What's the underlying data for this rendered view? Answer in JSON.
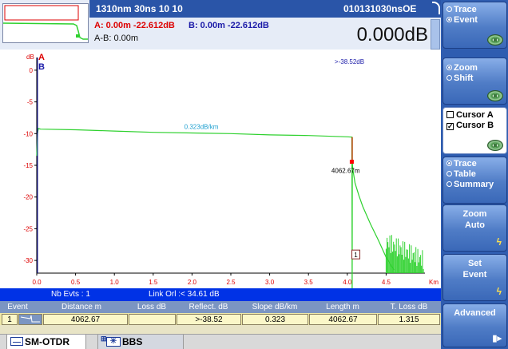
{
  "header": {
    "wavelength_info": "1310nm 30ns   10  10",
    "file_id": "010131030nsOE",
    "cursor_a": "A: 0.00m -22.612dB",
    "cursor_b": "B: 0.00m -22.612dB",
    "ab_distance": "A-B: 0.00m",
    "loss": "0.000dB"
  },
  "plot": {
    "y_unit": "dB",
    "x_unit": "Km",
    "marker_a": "A",
    "marker_b": "B",
    "slope_label": "0.323dB/km",
    "reflect_label": ">-38.52dB",
    "event_distance_label": "4062.67m",
    "event_marker": "1"
  },
  "chart_data": {
    "type": "line",
    "xlabel": "Km",
    "ylabel": "dB",
    "xlim": [
      0,
      5.0
    ],
    "ylim": [
      -32,
      2
    ],
    "x_ticks": [
      "0.0",
      "0.5",
      "1.0",
      "1.5",
      "2.0",
      "2.5",
      "3.0",
      "3.5",
      "4.0",
      "4.5"
    ],
    "y_ticks": [
      "0",
      "-5",
      "-10",
      "-15",
      "-20",
      "-25",
      "-30"
    ],
    "grid": false,
    "series": [
      {
        "color": "#2ed12e",
        "x": [
          0.0,
          0.01,
          0.02,
          0.05,
          0.5,
          1.0,
          1.5,
          2.0,
          2.5,
          3.0,
          3.5,
          4.0,
          4.06,
          4.063,
          4.065,
          4.07,
          4.1,
          4.15,
          4.2,
          4.3,
          4.4,
          4.5,
          4.6
        ],
        "y": [
          -13.5,
          -10.0,
          -9.2,
          -9.3,
          -9.4,
          -9.6,
          -9.8,
          -9.9,
          -10.0,
          -10.2,
          -10.3,
          -10.5,
          -10.55,
          -38.52,
          -14.5,
          -15.5,
          -17.8,
          -19.8,
          -21.5,
          -24.3,
          -26.8,
          -29.5,
          -31.5
        ]
      }
    ]
  },
  "status": {
    "nb_events": "Nb Evts : 1",
    "link_orl": "Link Orl :< 34.61 dB"
  },
  "table": {
    "headers": [
      "Event",
      "Distance  m",
      "Loss dB",
      "Reflect. dB",
      "Slope  dB/km",
      "Length m",
      "T. Loss dB"
    ],
    "rows": [
      {
        "event": "1",
        "distance": "4062.67",
        "loss": "",
        "reflect": ">-38.52",
        "slope": "0.323",
        "length": "4062.67",
        "tloss": "1.315"
      }
    ]
  },
  "tabs": {
    "otdr": "SM-OTDR",
    "bbs": "BBS"
  },
  "softkeys": {
    "trace": "Trace",
    "event": "Event",
    "zoom": "Zoom",
    "shift": "Shift",
    "cursor_a": "Cursor A",
    "cursor_b": "Cursor B",
    "view_trace": "Trace",
    "view_table": "Table",
    "view_summary": "Summary",
    "zoom_auto_1": "Zoom",
    "zoom_auto_2": "Auto",
    "set_event_1": "Set",
    "set_event_2": "Event",
    "advanced": "Advanced"
  },
  "colors": {
    "trace": "#2ed12e",
    "cursor_a": "#dd0000",
    "cursor_b": "#1a1aa8",
    "axis_labels": "#dd0000",
    "annotation": "#1fa0d0",
    "header_bar": "#2a55a8",
    "side_panel": "#2f5db0"
  }
}
